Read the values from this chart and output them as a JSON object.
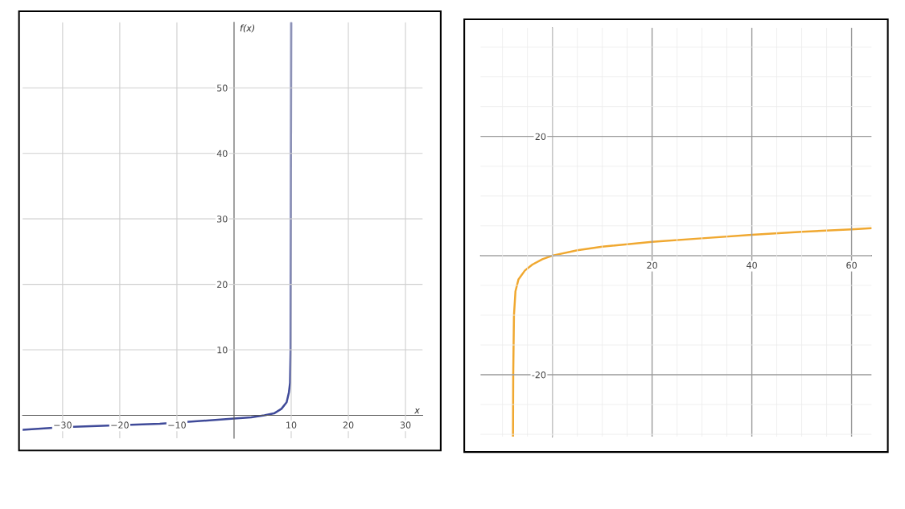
{
  "chart_data": [
    {
      "type": "line",
      "xlabel": "x",
      "ylabel": "f(x)",
      "xlim": [
        -37,
        33
      ],
      "ylim": [
        -3.5,
        60
      ],
      "xticks": [
        {
          "value": -30,
          "label": "−30"
        },
        {
          "value": -20,
          "label": "−20"
        },
        {
          "value": -10,
          "label": "−10"
        },
        10,
        20,
        30
      ],
      "yticks": [
        10,
        20,
        30,
        40,
        50
      ],
      "grid": true,
      "series": [
        {
          "color": "#3f4a99",
          "x": [
            -37,
            -30,
            -20,
            -13,
            0,
            3,
            5.3,
            7,
            8.3,
            9.2,
            9.6,
            9.8,
            9.9,
            9.95,
            10
          ],
          "values": [
            -2.2,
            -1.8,
            -1.5,
            -1.3,
            -0.5,
            -0.3,
            0,
            0.3,
            1,
            2,
            3.5,
            5,
            10,
            30,
            60
          ]
        }
      ]
    },
    {
      "type": "line",
      "xlim": [
        -14.4,
        64
      ],
      "ylim": [
        -30.4,
        38.2
      ],
      "xticks": [
        20,
        40,
        60
      ],
      "yticks": [
        -20,
        20
      ],
      "grid": true,
      "series": [
        {
          "color": "#f0a830",
          "x": [
            -7.9,
            -7.85,
            -7.7,
            -7.4,
            -6.8,
            -5.5,
            -4,
            -2,
            0,
            5,
            10,
            20,
            30,
            40,
            50,
            60,
            64
          ],
          "values": [
            -30.4,
            -20,
            -10,
            -6,
            -4,
            -2.5,
            -1.5,
            -0.6,
            0,
            0.9,
            1.5,
            2.3,
            2.9,
            3.5,
            4,
            4.4,
            4.6
          ]
        }
      ]
    }
  ]
}
